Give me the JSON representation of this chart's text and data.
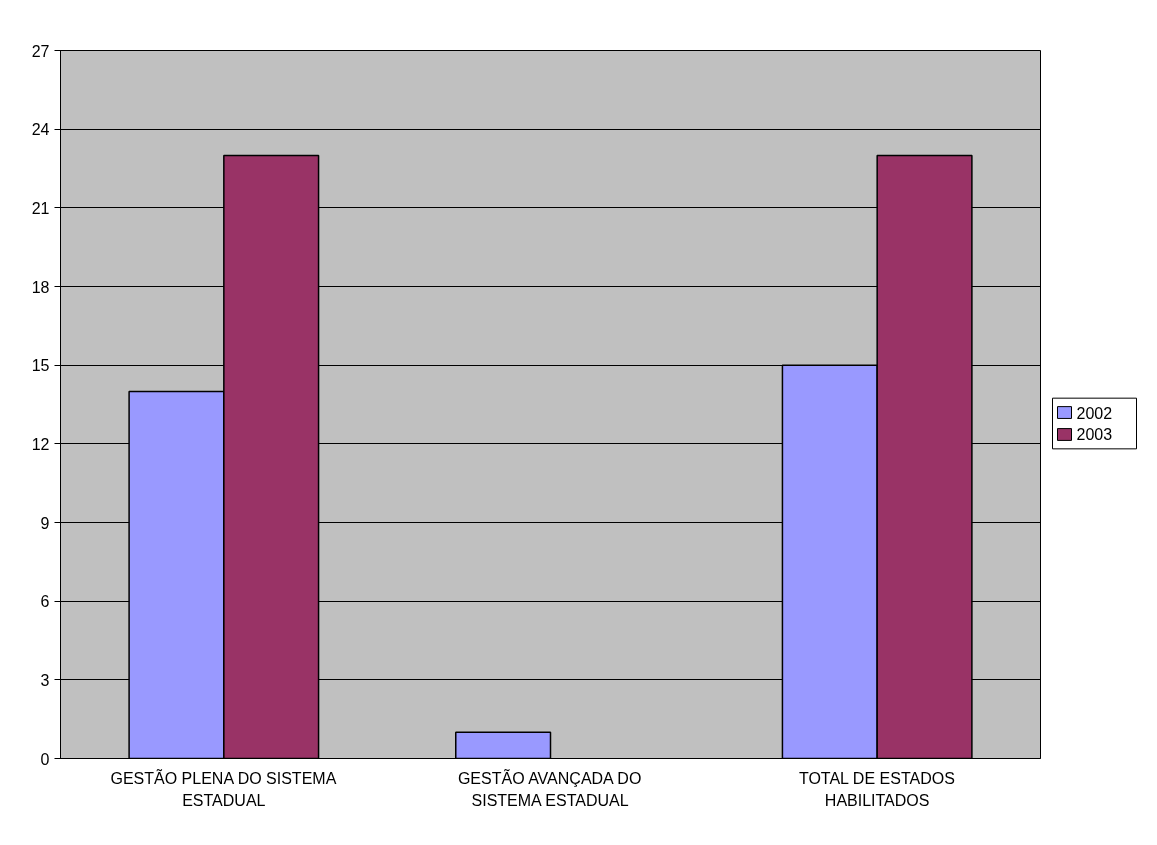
{
  "chart_data": {
    "type": "bar",
    "categories": [
      "GESTÃO PLENA DO SISTEMA ESTADUAL",
      "GESTÃO AVANÇADA DO SISTEMA ESTADUAL",
      "TOTAL DE ESTADOS HABILITADOS"
    ],
    "series": [
      {
        "name": "2002",
        "color": "#9999ff",
        "values": [
          14,
          1,
          15
        ]
      },
      {
        "name": "2003",
        "color": "#993366",
        "values": [
          23,
          null,
          23
        ]
      }
    ],
    "ylim": [
      0,
      27
    ],
    "yticks": [
      0,
      3,
      6,
      9,
      12,
      15,
      18,
      21,
      24,
      27
    ],
    "grid": "y",
    "legend": "right"
  }
}
